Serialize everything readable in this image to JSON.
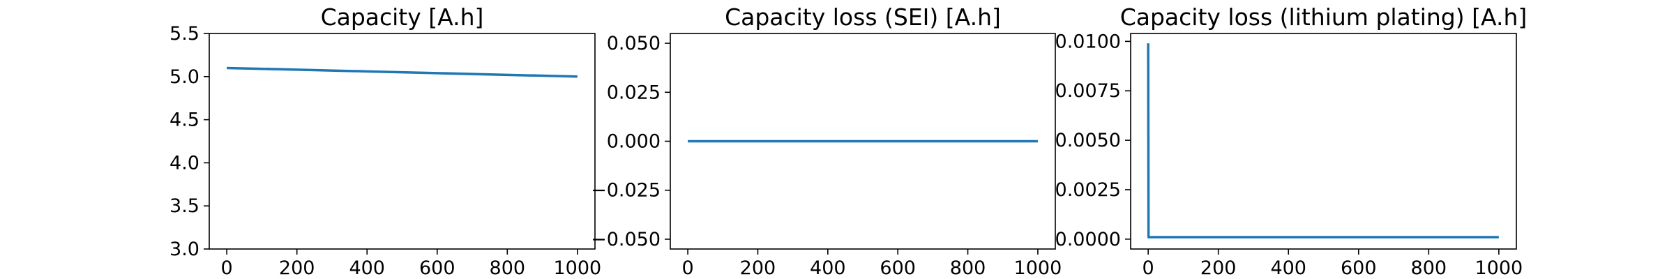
{
  "colors": {
    "series": "#1f77b4",
    "axes": "#000000",
    "background": "#ffffff"
  },
  "chart_data": [
    {
      "type": "line",
      "title": "Capacity [A.h]",
      "xlabel": "",
      "ylabel": "",
      "xlim": [
        -50,
        1050
      ],
      "ylim": [
        3.0,
        5.5
      ],
      "xticks": [
        0,
        200,
        400,
        600,
        800,
        1000
      ],
      "xtick_labels": [
        "0",
        "200",
        "400",
        "600",
        "800",
        "1000"
      ],
      "yticks": [
        3.0,
        3.5,
        4.0,
        4.5,
        5.0,
        5.5
      ],
      "ytick_labels": [
        "3.0",
        "3.5",
        "4.0",
        "4.5",
        "5.0",
        "5.5"
      ],
      "grid": false,
      "series": [
        {
          "x": [
            0,
            200,
            400,
            600,
            800,
            1000
          ],
          "y": [
            5.1,
            5.08,
            5.06,
            5.04,
            5.02,
            5.0
          ]
        }
      ]
    },
    {
      "type": "line",
      "title": "Capacity loss (SEI) [A.h]",
      "xlabel": "",
      "ylabel": "",
      "xlim": [
        -50,
        1050
      ],
      "ylim": [
        -0.055,
        0.055
      ],
      "xticks": [
        0,
        200,
        400,
        600,
        800,
        1000
      ],
      "xtick_labels": [
        "0",
        "200",
        "400",
        "600",
        "800",
        "1000"
      ],
      "yticks": [
        -0.05,
        -0.025,
        0.0,
        0.025,
        0.05
      ],
      "ytick_labels": [
        "−0.050",
        "−0.025",
        "0.000",
        "0.025",
        "0.050"
      ],
      "grid": false,
      "series": [
        {
          "x": [
            0,
            1000
          ],
          "y": [
            0.0,
            0.0
          ]
        }
      ]
    },
    {
      "type": "line",
      "title": "Capacity loss (lithium plating) [A.h]",
      "xlabel": "",
      "ylabel": "",
      "xlim": [
        -50,
        1050
      ],
      "ylim": [
        -0.0005,
        0.0104
      ],
      "xticks": [
        0,
        200,
        400,
        600,
        800,
        1000
      ],
      "xtick_labels": [
        "0",
        "200",
        "400",
        "600",
        "800",
        "1000"
      ],
      "yticks": [
        0.0,
        0.0025,
        0.005,
        0.0075,
        0.01
      ],
      "ytick_labels": [
        "0.0000",
        "0.0025",
        "0.0050",
        "0.0075",
        "0.0100"
      ],
      "grid": false,
      "series": [
        {
          "x": [
            0,
            1,
            1000
          ],
          "y": [
            0.0099,
            0.0001,
            0.0001
          ]
        }
      ]
    }
  ]
}
